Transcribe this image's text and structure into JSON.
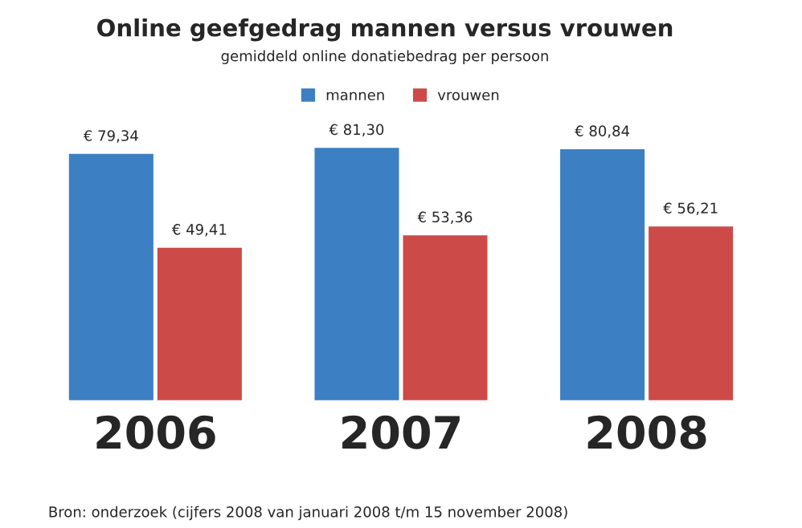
{
  "chart_data": {
    "type": "bar",
    "title": "Online geefgedrag mannen versus vrouwen",
    "subtitle": "gemiddeld online donatiebedrag per persoon",
    "categories": [
      "2006",
      "2007",
      "2008"
    ],
    "series": [
      {
        "name": "mannen",
        "color": "#3c7fc2",
        "values": [
          79.34,
          81.3,
          80.84
        ],
        "value_labels": [
          "€ 79,34",
          "€ 81,30",
          "€ 80,84"
        ]
      },
      {
        "name": "vrouwen",
        "color": "#cc4b48",
        "values": [
          49.41,
          53.36,
          56.21
        ],
        "value_labels": [
          "€ 49,41",
          "€ 53,36",
          "€ 56,21"
        ]
      }
    ],
    "legend": "top",
    "annotations": [
      "Bron: onderzoek (cijfers 2008 van januari 2008 t/m 15 november 2008)"
    ]
  }
}
